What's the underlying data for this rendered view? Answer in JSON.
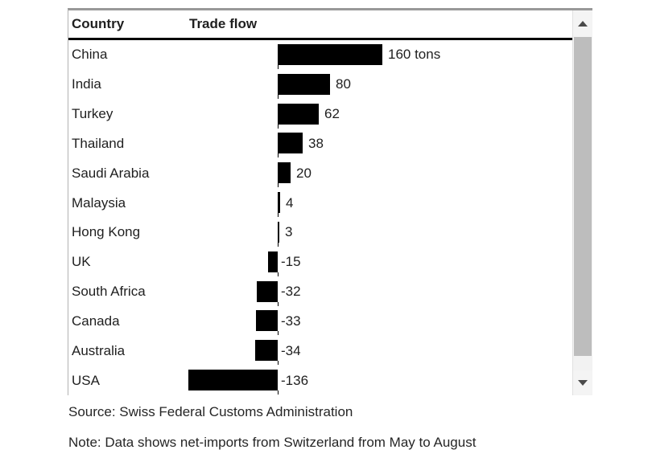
{
  "header": {
    "country_label": "Country",
    "trade_flow_label": "Trade flow"
  },
  "chart_data": {
    "type": "bar",
    "orientation": "horizontal",
    "title": "",
    "unit": "tons",
    "baseline": 0,
    "categories": [
      "China",
      "India",
      "Turkey",
      "Thailand",
      "Saudi Arabia",
      "Malaysia",
      "Hong Kong",
      "UK",
      "South Africa",
      "Canada",
      "Australia",
      "USA"
    ],
    "values": [
      160,
      80,
      62,
      38,
      20,
      4,
      3,
      -15,
      -32,
      -33,
      -34,
      -136
    ],
    "value_labels": [
      "160 tons",
      "80",
      "62",
      "38",
      "20",
      "4",
      "3",
      "-15",
      "-32",
      "-33",
      "-34",
      "-136"
    ],
    "xlim": [
      -160,
      320
    ],
    "grid": false,
    "bar_color": "#000000"
  },
  "footer": {
    "source": "Source: Swiss Federal Customs Administration",
    "note": "Note: Data shows net-imports from Switzerland from May to August"
  },
  "scrollbar": {
    "up_arrow_icon": "triangle-up",
    "down_arrow_icon": "triangle-down",
    "thumb_color": "#bdbdbd",
    "track_color": "#f2f2f2"
  },
  "colors": {
    "bar": "#000000",
    "text": "#1f1f1f",
    "panel_border_top": "#999999",
    "panel_border_left": "#b3b3b3",
    "header_underline": "#000000"
  }
}
